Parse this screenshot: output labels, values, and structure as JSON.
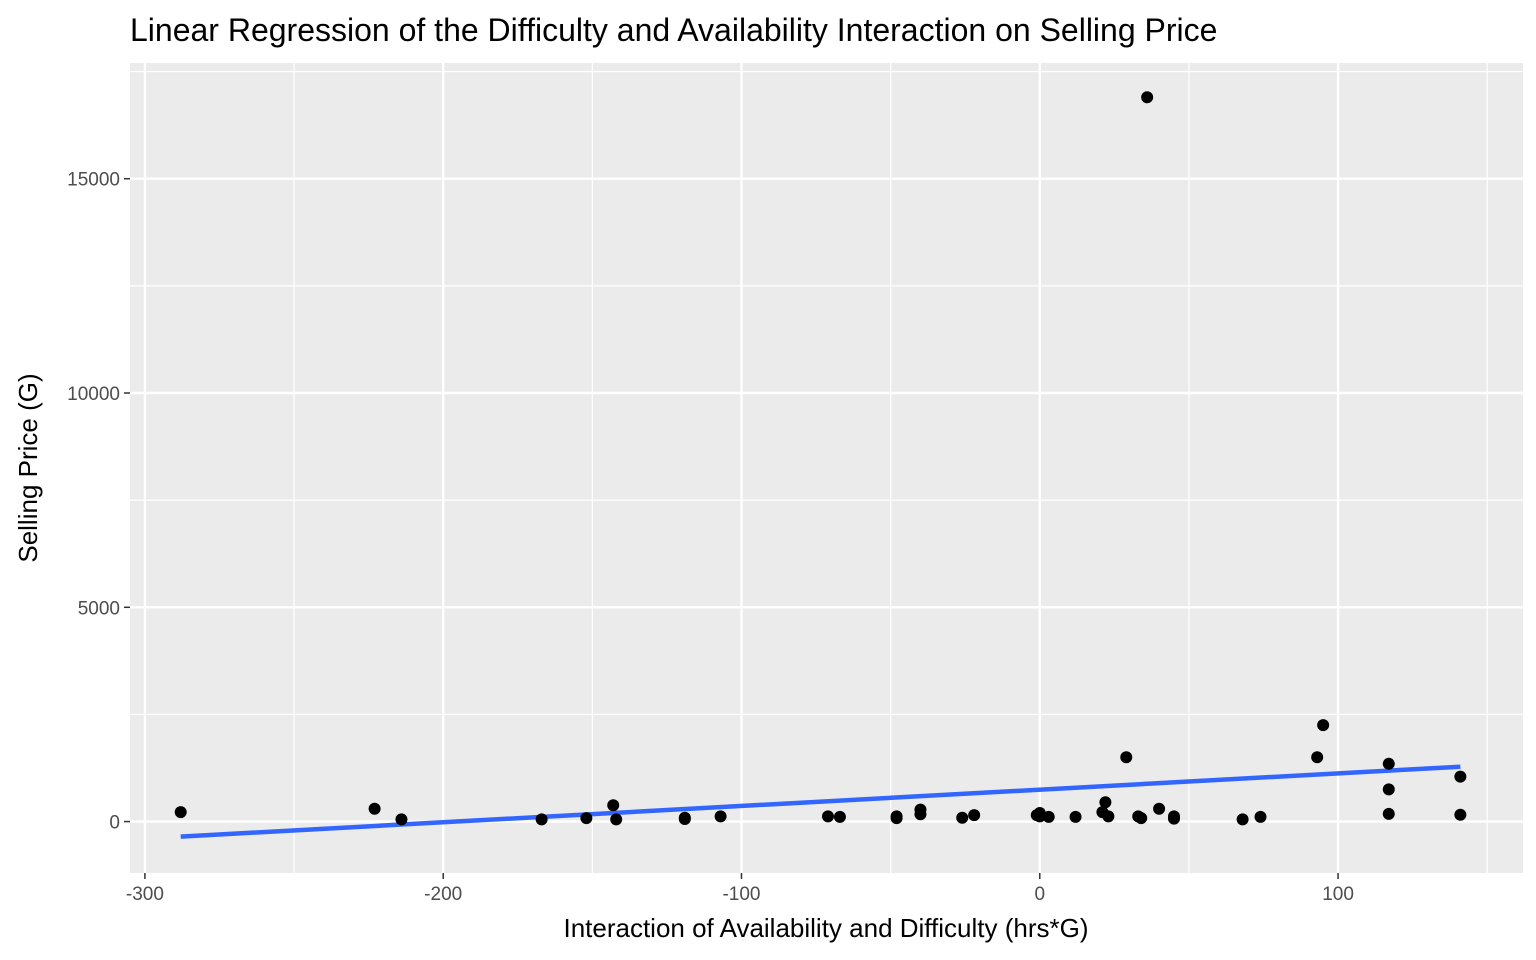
{
  "chart_data": {
    "type": "scatter",
    "title": "Linear Regression of the Difficulty and Availability Interaction on Selling Price",
    "xlabel": "Interaction of Availability and Difficulty (hrs*G)",
    "ylabel": "Selling Price (G)",
    "xlim": [
      -305,
      162
    ],
    "ylim": [
      -1200,
      17700
    ],
    "x_ticks": [
      -300,
      -200,
      -100,
      0,
      100
    ],
    "x_tick_labels": [
      "-300",
      "-200",
      "-100",
      "0",
      "100"
    ],
    "y_ticks": [
      0,
      5000,
      10000,
      15000
    ],
    "y_tick_labels": [
      "0",
      "5000",
      "10000",
      "15000"
    ],
    "grid": true,
    "legend": "none",
    "colors": {
      "panel": "#ebebeb",
      "grid": "#ffffff",
      "points": "#000000",
      "fit_line": "#3366ff"
    },
    "points": [
      {
        "x": -288,
        "y": 220
      },
      {
        "x": -223,
        "y": 300
      },
      {
        "x": -214,
        "y": 50
      },
      {
        "x": -167,
        "y": 50
      },
      {
        "x": -152,
        "y": 80
      },
      {
        "x": -143,
        "y": 380
      },
      {
        "x": -142,
        "y": 50
      },
      {
        "x": -119,
        "y": 60
      },
      {
        "x": -119,
        "y": 90
      },
      {
        "x": -107,
        "y": 120
      },
      {
        "x": -71,
        "y": 120
      },
      {
        "x": -67,
        "y": 110
      },
      {
        "x": -48,
        "y": 80
      },
      {
        "x": -48,
        "y": 120
      },
      {
        "x": -40,
        "y": 170
      },
      {
        "x": -40,
        "y": 280
      },
      {
        "x": -26,
        "y": 90
      },
      {
        "x": -22,
        "y": 150
      },
      {
        "x": -1,
        "y": 150
      },
      {
        "x": 0,
        "y": 200
      },
      {
        "x": 0,
        "y": 120
      },
      {
        "x": 3,
        "y": 110
      },
      {
        "x": 12,
        "y": 110
      },
      {
        "x": 21,
        "y": 220
      },
      {
        "x": 22,
        "y": 450
      },
      {
        "x": 23,
        "y": 120
      },
      {
        "x": 29,
        "y": 1500
      },
      {
        "x": 33,
        "y": 120
      },
      {
        "x": 34,
        "y": 80
      },
      {
        "x": 36,
        "y": 16900
      },
      {
        "x": 40,
        "y": 300
      },
      {
        "x": 45,
        "y": 120
      },
      {
        "x": 45,
        "y": 70
      },
      {
        "x": 68,
        "y": 50
      },
      {
        "x": 74,
        "y": 110
      },
      {
        "x": 93,
        "y": 1500
      },
      {
        "x": 95,
        "y": 2250
      },
      {
        "x": 117,
        "y": 1350
      },
      {
        "x": 117,
        "y": 750
      },
      {
        "x": 117,
        "y": 180
      },
      {
        "x": 141,
        "y": 1050
      },
      {
        "x": 141,
        "y": 160
      }
    ],
    "fit_line": {
      "x": [
        -288,
        141
      ],
      "y": [
        -350,
        1280
      ]
    }
  }
}
